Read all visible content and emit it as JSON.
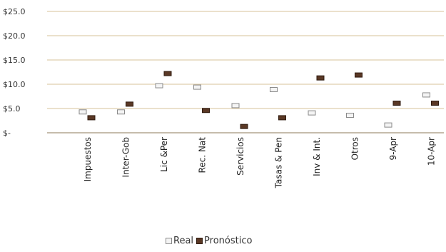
{
  "chart_data": {
    "type": "scatter",
    "title": "",
    "xlabel": "",
    "ylabel": "",
    "ylim": [
      0,
      25
    ],
    "yticks": [
      0,
      5,
      10,
      15,
      20,
      25
    ],
    "ytick_labels": [
      "$-",
      "$5.0",
      "$10.0",
      "$15.0",
      "$20.0",
      "$25.0"
    ],
    "grid": "horizontal",
    "legend_position": "bottom-center",
    "categories": [
      "Impuestos",
      "Inter-Gob",
      "Lic &Per",
      "Rec. Nat",
      "Servicios",
      "Tasas & Pen",
      "Inv & Int.",
      "Otros",
      "9-Apr",
      "10-Apr"
    ],
    "series": [
      {
        "name": "Real",
        "values": [
          4.3,
          4.3,
          9.7,
          9.4,
          5.6,
          8.9,
          4.1,
          3.6,
          1.6,
          7.8
        ],
        "color": "#f4f4f4",
        "stroke": "#8a8a8a"
      },
      {
        "name": "Pronóstico",
        "values": [
          3.1,
          5.9,
          12.2,
          4.6,
          1.3,
          3.1,
          11.3,
          11.9,
          6.1,
          6.1
        ],
        "color": "#5a3825",
        "stroke": "#2e1a0e"
      }
    ],
    "gridline_color": "#d7c39a"
  }
}
